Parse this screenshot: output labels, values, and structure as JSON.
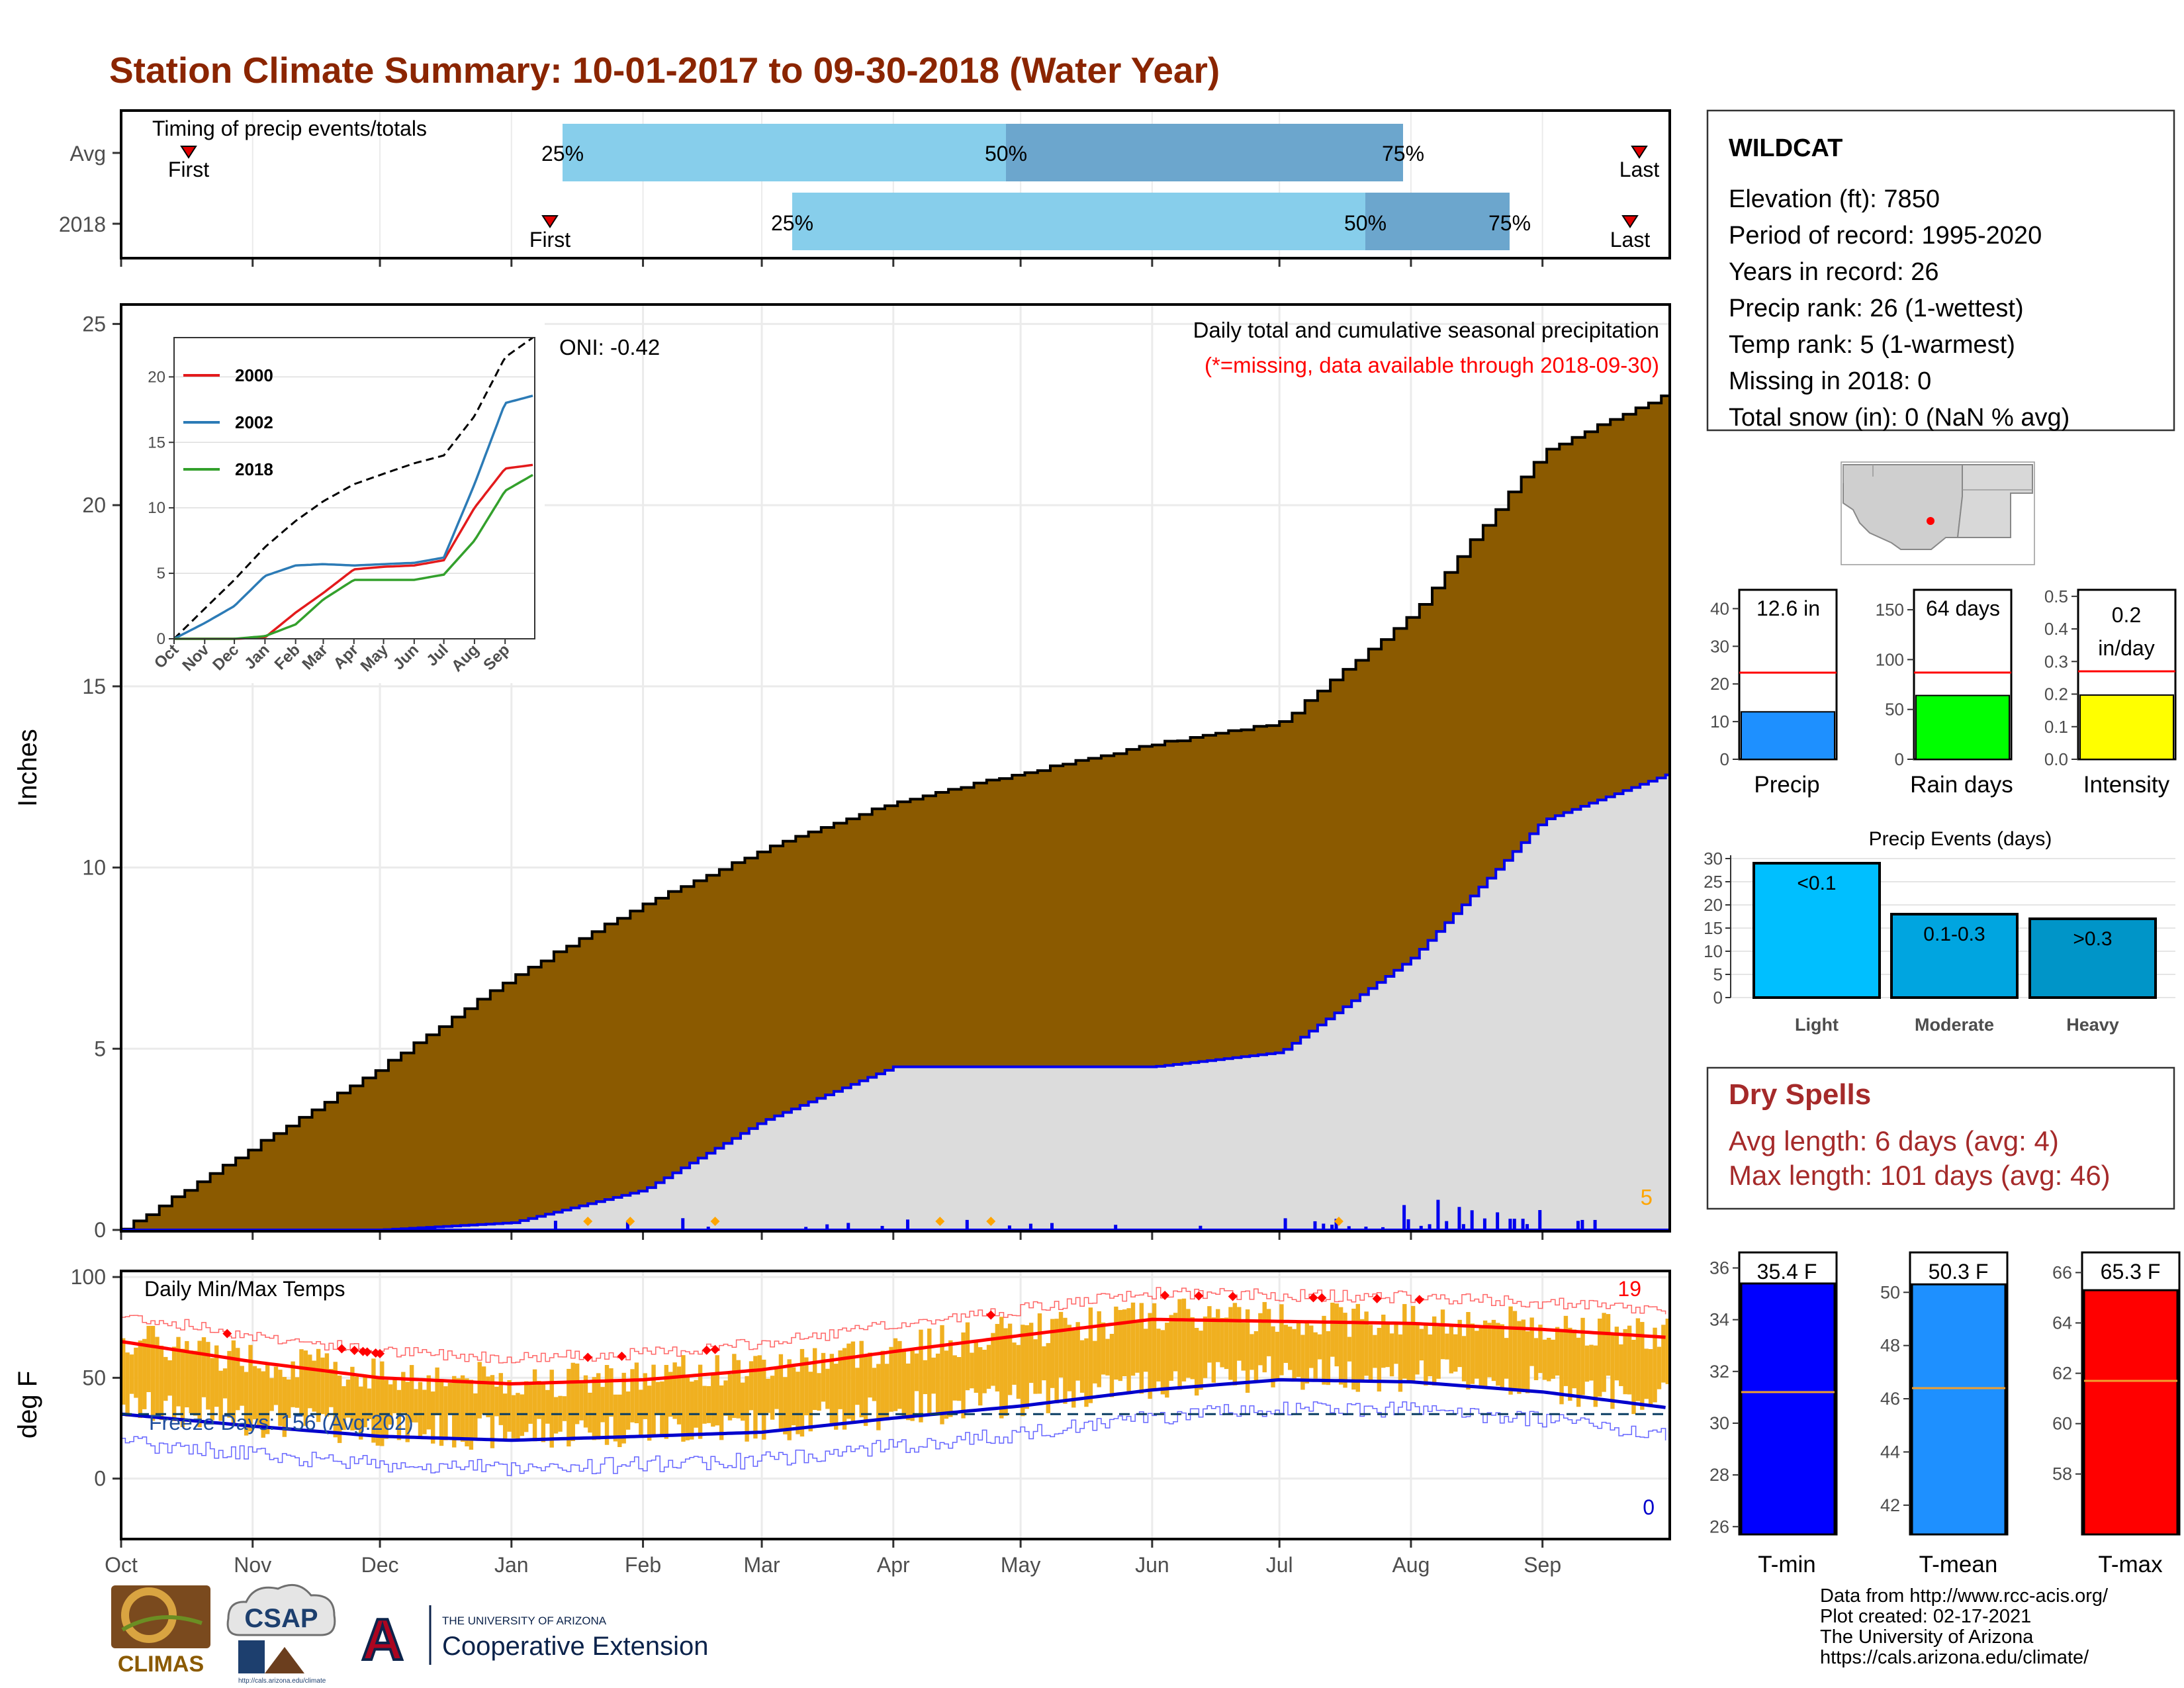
{
  "title": "Station Climate Summary: 10-01-2017 to 09-30-2018 (Water Year)",
  "timing": {
    "heading": "Timing of precip events/totals",
    "rows": [
      "Avg",
      "2018"
    ],
    "first_label": "First",
    "last_label": "Last",
    "q25": "25%",
    "q50": "50%",
    "q75": "75%"
  },
  "main_panel": {
    "ylabel": "Inches",
    "oni": "ONI: -0.42",
    "heading": "Daily total and cumulative seasonal precipitation",
    "missing_note": "(*=missing, data available through 2018-09-30)",
    "missing_count": "5",
    "yticks": [
      "0",
      "5",
      "10",
      "15",
      "20",
      "25"
    ]
  },
  "inset": {
    "yticks": [
      "0",
      "5",
      "10",
      "15",
      "20"
    ],
    "xticks": [
      "Oct",
      "Nov",
      "Dec",
      "Jan",
      "Feb",
      "Mar",
      "Apr",
      "May",
      "Jun",
      "Jul",
      "Aug",
      "Sep"
    ],
    "legend": [
      {
        "name": "2000",
        "color": "#e31a1c"
      },
      {
        "name": "2002",
        "color": "#2c7bb6"
      },
      {
        "name": "2018",
        "color": "#33a02c"
      }
    ]
  },
  "temp_panel": {
    "ylabel": "deg F",
    "heading": "Daily Min/Max Temps",
    "freeze": "Freeze Days: 156 (Avg:202)",
    "count_high": "19",
    "count_low": "0",
    "yticks": [
      "0",
      "50",
      "100"
    ]
  },
  "months": [
    "Oct",
    "Nov",
    "Dec",
    "Jan",
    "Feb",
    "Mar",
    "Apr",
    "May",
    "Jun",
    "Jul",
    "Aug",
    "Sep"
  ],
  "station": {
    "name": "WILDCAT",
    "lines": [
      "Elevation (ft): 7850",
      "Period of record: 1995-2020",
      "Years in record: 26",
      "Precip rank: 26 (1-wettest)",
      "Temp rank: 5 (1-warmest)",
      "Missing in 2018: 0",
      "Total snow (in): 0 (NaN % avg)"
    ]
  },
  "summary_bars": [
    {
      "label": "Precip",
      "value_text": "12.6 in",
      "value": 12.6,
      "avg": 23,
      "max": 45,
      "color": "#1e90ff",
      "yticks": [
        "0",
        "10",
        "20",
        "30",
        "40"
      ],
      "tick_vals": [
        0,
        10,
        20,
        30,
        40
      ]
    },
    {
      "label": "Rain days",
      "value_text": "64 days",
      "value": 64,
      "avg": 87,
      "max": 170,
      "color": "#00ff00",
      "yticks": [
        "0",
        "50",
        "100",
        "150"
      ],
      "tick_vals": [
        0,
        50,
        100,
        150
      ]
    },
    {
      "label": "Intensity",
      "value_text": "0.2",
      "value_text2": "in/day",
      "value": 0.197,
      "avg": 0.27,
      "max": 0.52,
      "color": "#ffff00",
      "yticks": [
        "0.0",
        "0.1",
        "0.2",
        "0.3",
        "0.4",
        "0.5"
      ],
      "tick_vals": [
        0,
        0.1,
        0.2,
        0.3,
        0.4,
        0.5
      ]
    }
  ],
  "precip_events": {
    "title": "Precip Events (days)",
    "yticks": [
      "0",
      "5",
      "10",
      "15",
      "20",
      "25",
      "30"
    ],
    "bars": [
      {
        "category": "Light",
        "label": "<0.1",
        "value": 29,
        "color": "#00bfff"
      },
      {
        "category": "Moderate",
        "label": "0.1-0.3",
        "value": 18,
        "color": "#00a5e0"
      },
      {
        "category": "Heavy",
        "label": ">0.3",
        "value": 17,
        "color": "#0095c8"
      }
    ]
  },
  "dry_spells": {
    "title": "Dry Spells",
    "avg": "Avg length: 6 days (avg: 4)",
    "max": "Max length: 101 days (avg: 46)"
  },
  "temp_bars": [
    {
      "label": "T-min",
      "value_text": "35.4 F",
      "value": 35.4,
      "avg": 31.2,
      "ymin": 25.7,
      "ymax": 36.6,
      "color": "#0000ff",
      "yticks": [
        "26",
        "28",
        "30",
        "32",
        "34",
        "36"
      ],
      "tick_vals": [
        26,
        28,
        30,
        32,
        34,
        36
      ]
    },
    {
      "label": "T-mean",
      "value_text": "50.3 F",
      "value": 50.3,
      "avg": 46.4,
      "ymin": 40.9,
      "ymax": 51.5,
      "color": "#1e90ff",
      "yticks": [
        "42",
        "44",
        "46",
        "48",
        "50"
      ],
      "tick_vals": [
        42,
        44,
        46,
        48,
        50
      ]
    },
    {
      "label": "T-max",
      "value_text": "65.3 F",
      "value": 65.3,
      "avg": 61.7,
      "ymin": 55.6,
      "ymax": 66.8,
      "color": "#ff0000",
      "yticks": [
        "58",
        "60",
        "62",
        "64",
        "66"
      ],
      "tick_vals": [
        58,
        60,
        62,
        64,
        66
      ]
    }
  ],
  "logos": {
    "climas": "CLIMAS",
    "csap": "CSAP",
    "csap_url": "http://cals.arizona.edu/climate",
    "ua_small": "THE UNIVERSITY OF ARIZONA",
    "ua_big": "Cooperative Extension",
    "ua_letter": "A"
  },
  "footer": [
    "Data from http://www.rcc-acis.org/",
    "Plot created: 02-17-2021",
    "The University of Arizona",
    "https://cals.arizona.edu/climate/"
  ],
  "chart_data": [
    {
      "type": "area",
      "title": "Daily total and cumulative seasonal precipitation",
      "ylabel": "Inches",
      "ylim": [
        0,
        25.5
      ],
      "x": [
        "Oct",
        "Nov",
        "Dec",
        "Jan",
        "Feb",
        "Mar",
        "Apr",
        "May",
        "Jun",
        "Jul",
        "Aug",
        "Sep",
        "Oct"
      ],
      "series": [
        {
          "name": "Avg",
          "values": [
            0,
            2.3,
            4.5,
            7.0,
            9.0,
            10.5,
            11.8,
            12.6,
            13.4,
            14.0,
            17.0,
            21.5,
            23.1
          ]
        },
        {
          "name": "2018",
          "values": [
            0,
            0,
            0,
            0.2,
            1.1,
            3.0,
            4.5,
            4.5,
            4.5,
            4.9,
            7.5,
            11.3,
            12.6
          ]
        }
      ]
    },
    {
      "type": "line",
      "ylim": [
        0,
        23
      ],
      "x": [
        "Oct",
        "Nov",
        "Dec",
        "Jan",
        "Feb",
        "Mar",
        "Apr",
        "May",
        "Jun",
        "Jul",
        "Aug",
        "Sep",
        "Oct"
      ],
      "series": [
        {
          "name": "Avg",
          "values": [
            0,
            2.3,
            4.5,
            7.0,
            9.0,
            10.5,
            11.8,
            12.6,
            13.4,
            14.0,
            17.0,
            21.5,
            23.1
          ]
        },
        {
          "name": "2000",
          "values": [
            0,
            0,
            0,
            0.1,
            2.0,
            3.5,
            5.3,
            5.5,
            5.6,
            6.0,
            10.0,
            13.0,
            13.3
          ]
        },
        {
          "name": "2002",
          "values": [
            0,
            1.2,
            2.5,
            4.8,
            5.6,
            5.7,
            5.6,
            5.7,
            5.8,
            6.2,
            11.8,
            18.0,
            18.6
          ]
        },
        {
          "name": "2018",
          "values": [
            0,
            0,
            0,
            0.2,
            1.1,
            3.0,
            4.5,
            4.5,
            4.5,
            4.9,
            7.5,
            11.3,
            12.6
          ]
        }
      ]
    },
    {
      "type": "line",
      "title": "Daily Min/Max Temps",
      "ylabel": "deg F",
      "ylim": [
        -30,
        103
      ],
      "x": [
        "Oct",
        "Nov",
        "Dec",
        "Jan",
        "Feb",
        "Mar",
        "Apr",
        "May",
        "Jun",
        "Jul",
        "Aug",
        "Sep",
        "Oct"
      ],
      "series": [
        {
          "name": "Avg max",
          "values": [
            68,
            58,
            50,
            47,
            49,
            54,
            63,
            71,
            79,
            78,
            77,
            74,
            70
          ]
        },
        {
          "name": "Avg min",
          "values": [
            32,
            26,
            21,
            19,
            21,
            23,
            30,
            36,
            44,
            49,
            48,
            43,
            35
          ]
        },
        {
          "name": "Threshold",
          "values": [
            32,
            32,
            32,
            32,
            32,
            32,
            32,
            32,
            32,
            32,
            32,
            32,
            32
          ]
        }
      ]
    },
    {
      "type": "bar",
      "categories": [
        "Precip",
        "Rain days",
        "Intensity"
      ],
      "values": [
        12.6,
        64,
        0.2
      ]
    },
    {
      "type": "bar",
      "title": "Precip Events (days)",
      "categories": [
        "Light",
        "Moderate",
        "Heavy"
      ],
      "values": [
        29,
        18,
        17
      ],
      "ylim": [
        0,
        30
      ]
    },
    {
      "type": "bar",
      "categories": [
        "T-min",
        "T-mean",
        "T-max"
      ],
      "values": [
        35.4,
        50.3,
        65.3
      ]
    }
  ]
}
